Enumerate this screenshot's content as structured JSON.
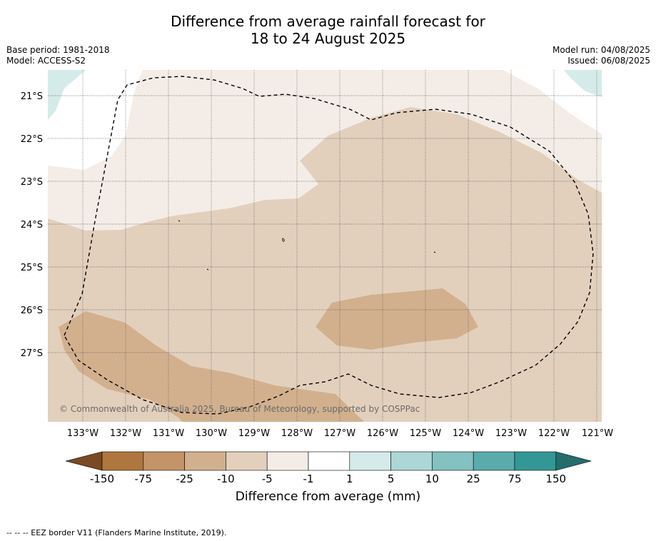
{
  "title_line1": "Difference from average rainfall forecast for",
  "title_line2": "18 to 24 August 2025",
  "base_period": "Base period: 1981-2018",
  "model": "Model: ACCESS-S2",
  "model_run": "Model run: 04/08/2025",
  "issued": "Issued: 06/08/2025",
  "copyright": "© Commonwealth of Australia 2025, Bureau of Meteorology, supported by COSPPac",
  "latitudes": [
    "21°S",
    "22°S",
    "23°S",
    "24°S",
    "25°S",
    "26°S",
    "27°S"
  ],
  "longitudes": [
    "133°W",
    "132°W",
    "131°W",
    "130°W",
    "129°W",
    "128°W",
    "127°W",
    "126°W",
    "125°W",
    "124°W",
    "123°W",
    "122°W",
    "121°W"
  ],
  "colorbar": {
    "labels": [
      "-150",
      "-75",
      "-25",
      "-10",
      "-5",
      "-1",
      "1",
      "5",
      "10",
      "25",
      "75",
      "150"
    ],
    "colors": [
      "#7a4a22",
      "#ae773e",
      "#c29468",
      "#d2b08e",
      "#e2d0bd",
      "#f4ede7",
      "#ffffff",
      "#d4ebea",
      "#acd7d6",
      "#84c2c1",
      "#5aacac",
      "#339895",
      "#236e6c"
    ],
    "title": "Difference from average (mm)"
  },
  "footer": "--  --  -- EEZ border V11 (Flanders Marine Institute, 2019)."
}
